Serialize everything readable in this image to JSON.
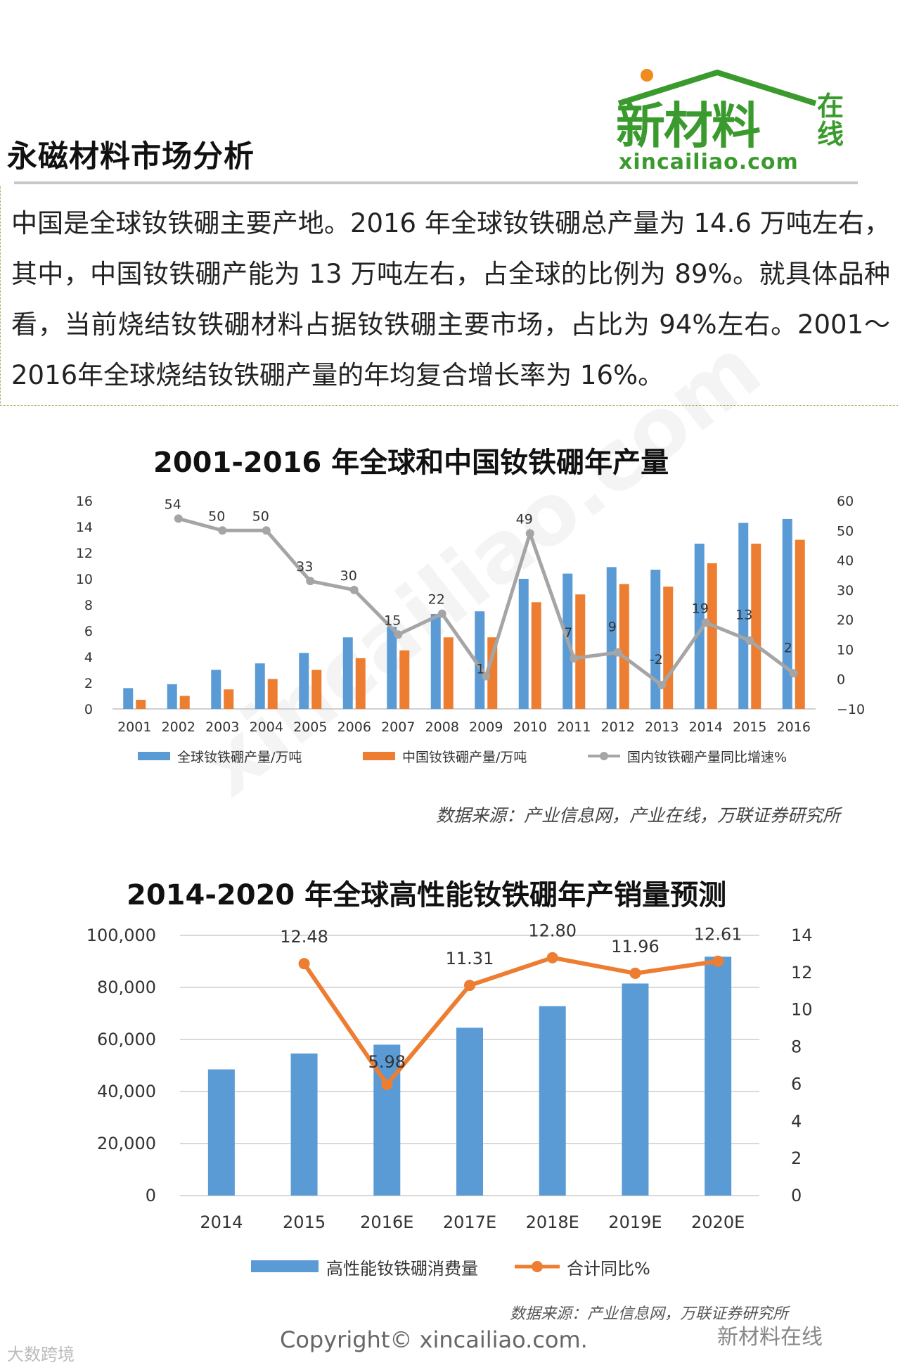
{
  "page": {
    "title": "永磁材料市场分析",
    "logo_cn": "新材料",
    "logo_zai": "在线",
    "logo_url": "xincailiao.com",
    "intro_text": "中国是全球钕铁硼主要产地。2016 年全球钕铁硼总产量为 14.6 万吨左右，其中，中国钕铁硼产能为 13 万吨左右，占全球的比例为 89%。就具体品种看，当前烧结钕铁硼材料占据钕铁硼主要市场，占比为 94%左右。2001～2016年全球烧结钕铁硼产量的年均复合增长率为 16%。",
    "source1": "数据来源：产业信息网，产业在线，万联证券研究所",
    "source2": "数据来源：产业信息网，万联证券研究所",
    "copyright": "Copyright© xincailiao.com.",
    "wechat_mark": "新材料在线",
    "corner_mark": "大数跨境",
    "diag_watermark": "xincailiao.com"
  },
  "colors": {
    "blue": "#5b9bd5",
    "orange": "#ed7d31",
    "gray": "#a5a5a5",
    "green": "#3a9a2e"
  },
  "chart_data": [
    {
      "type": "bar",
      "title": "2001-2016 年全球和中国钕铁硼年产量",
      "categories": [
        "2001",
        "2002",
        "2003",
        "2004",
        "2005",
        "2006",
        "2007",
        "2008",
        "2009",
        "2010",
        "2011",
        "2012",
        "2013",
        "2014",
        "2015",
        "2016"
      ],
      "series": [
        {
          "name": "全球钕铁硼产量/万吨",
          "kind": "bar",
          "axis": "left",
          "color": "#5b9bd5",
          "values": [
            1.6,
            1.9,
            3.0,
            3.5,
            4.3,
            5.5,
            6.3,
            7.3,
            7.5,
            10.0,
            10.4,
            10.9,
            10.7,
            12.7,
            14.3,
            14.6
          ]
        },
        {
          "name": "中国钕铁硼产量/万吨",
          "kind": "bar",
          "axis": "left",
          "color": "#ed7d31",
          "values": [
            0.7,
            1.0,
            1.5,
            2.3,
            3.0,
            3.9,
            4.5,
            5.5,
            5.5,
            8.2,
            8.8,
            9.6,
            9.4,
            11.2,
            12.7,
            13.0
          ]
        },
        {
          "name": "国内钕铁硼产量同比增速%",
          "kind": "line",
          "axis": "right",
          "color": "#a5a5a5",
          "values": [
            null,
            54,
            50,
            50,
            33,
            30,
            15,
            22,
            1,
            49,
            7,
            9,
            -2,
            19,
            13,
            2
          ]
        }
      ],
      "left_axis": {
        "ylim": [
          0,
          16
        ],
        "ticks": [
          0,
          2,
          4,
          6,
          8,
          10,
          12,
          14,
          16
        ]
      },
      "right_axis": {
        "ylim": [
          -10,
          60
        ],
        "ticks": [
          -10,
          0,
          10,
          20,
          30,
          40,
          50,
          60
        ]
      },
      "legend": "bottom"
    },
    {
      "type": "bar",
      "title": "2014-2020 年全球高性能钕铁硼年产销量预测",
      "categories": [
        "2014",
        "2015",
        "2016E",
        "2017E",
        "2018E",
        "2019E",
        "2020E"
      ],
      "series": [
        {
          "name": "高性能钕铁硼消费量",
          "kind": "bar",
          "axis": "left",
          "color": "#5b9bd5",
          "values": [
            48500,
            54600,
            58000,
            64500,
            72800,
            81500,
            91800
          ]
        },
        {
          "name": "合计同比%",
          "kind": "line",
          "axis": "right",
          "color": "#ed7d31",
          "values": [
            null,
            12.48,
            5.98,
            11.31,
            12.8,
            11.96,
            12.61
          ],
          "labels": [
            "",
            "12.48",
            "5.98",
            "11.31",
            "12.80",
            "11.96",
            "12.61"
          ]
        }
      ],
      "left_axis": {
        "ylim": [
          0,
          100000
        ],
        "ticks": [
          "0",
          "20,000",
          "40,000",
          "60,000",
          "80,000",
          "100,000"
        ]
      },
      "right_axis": {
        "ylim": [
          0,
          14
        ],
        "ticks": [
          0,
          2,
          4,
          6,
          8,
          10,
          12,
          14
        ]
      },
      "grid": true,
      "legend": "bottom"
    }
  ]
}
